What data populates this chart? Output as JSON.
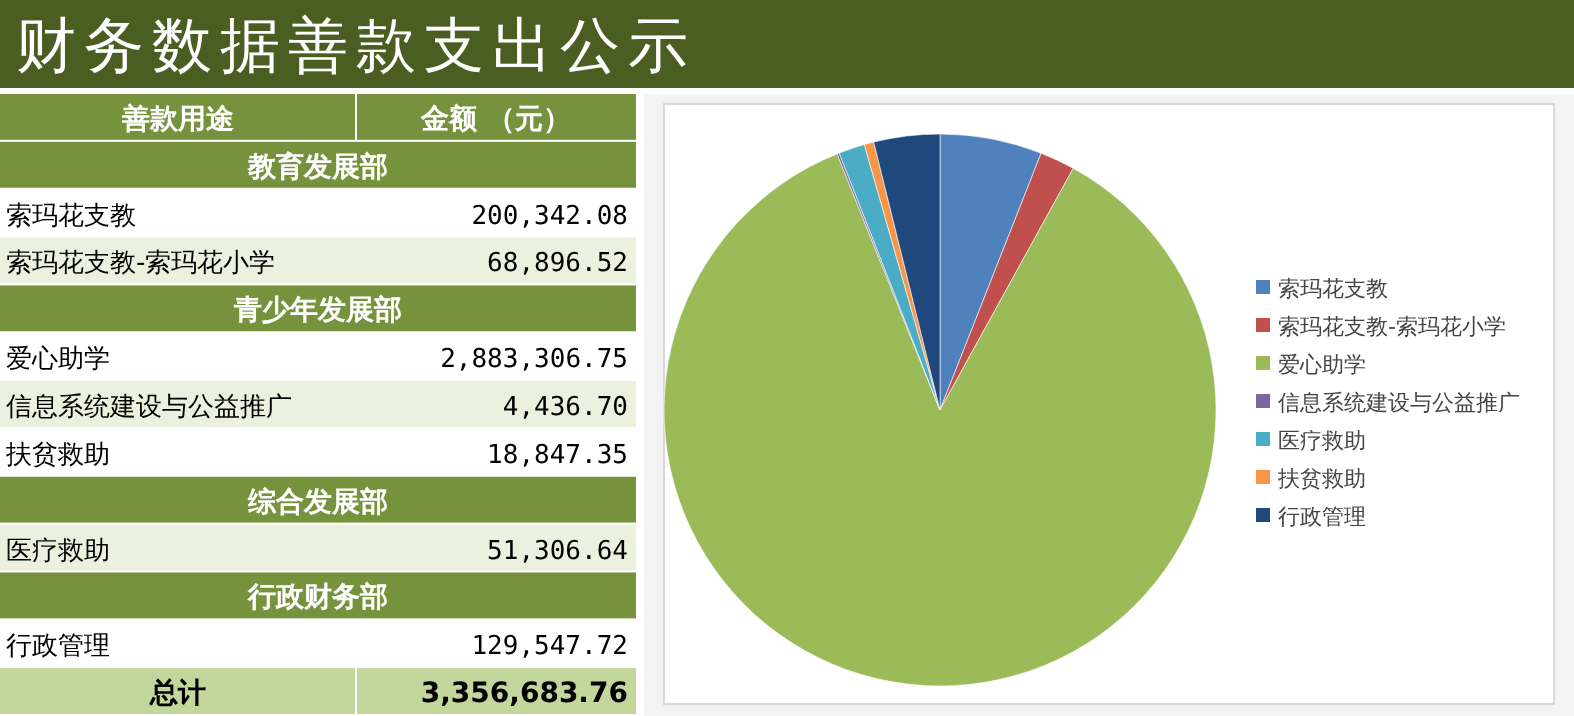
{
  "chart_data": [
    {
      "type": "other",
      "title": "财务数据善款支出公示",
      "annotations": [
        "善款用途",
        "金额 （元）",
        "教育发展部",
        "索玛花支教",
        "200,342.08",
        "索玛花支教-索玛花小学",
        "68,896.52",
        "青少年发展部",
        "爱心助学",
        "2,883,306.75",
        "信息系统建设与公益推广",
        "4,436.70",
        "扶贫救助",
        "18,847.35",
        "综合发展部",
        "医疗救助",
        "51,306.64",
        "行政财务部",
        "行政管理",
        "129,547.72",
        "总计",
        "3,356,683.76"
      ]
    },
    {
      "type": "pie",
      "categories": [
        "索玛花支教",
        "索玛花支教-索玛花小学",
        "爱心助学",
        "信息系统建设与公益推广",
        "医疗救助",
        "扶贫救助",
        "行政管理"
      ],
      "values": [
        5.97,
        2.05,
        85.9,
        0.13,
        1.53,
        0.56,
        3.86
      ],
      "colors": [
        "#4f81bd",
        "#c0504d",
        "#9bbb59",
        "#8064a2",
        "#4bacc6",
        "#f79646",
        "#1f497d"
      ],
      "legend": "right"
    }
  ]
}
